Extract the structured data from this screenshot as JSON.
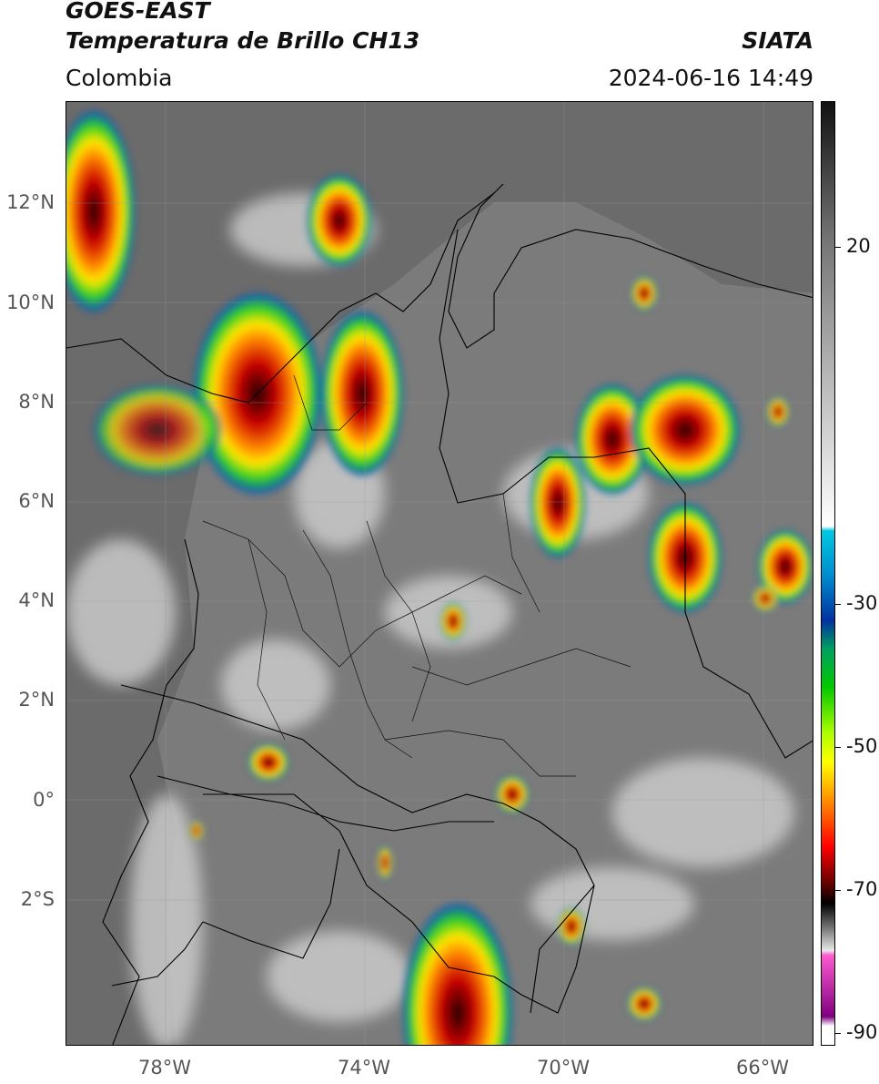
{
  "header": {
    "satellite": "GOES-EAST",
    "product": "Temperatura de Brillo CH13",
    "org": "SIATA",
    "region": "Colombia",
    "datetime": "2024-06-16 14:49"
  },
  "map": {
    "lat_labels": [
      "12°N",
      "10°N",
      "8°N",
      "6°N",
      "4°N",
      "2°N",
      "0°",
      "2°S"
    ],
    "lon_labels": [
      "78°W",
      "74°W",
      "70°W",
      "66°W"
    ],
    "colors": {
      "ocean": "#6e6e6e",
      "land": "#7d7d7d",
      "cold_cloud": "#d8d8d8",
      "border": "#000000"
    }
  },
  "colorbar": {
    "labels": [
      "20",
      "-30",
      "-50",
      "-70",
      "-90"
    ],
    "gradient": [
      "#111111",
      "#ffffff",
      "#00c8e0",
      "#0032a0",
      "#00c800",
      "#ffff00",
      "#ff0000",
      "#000000",
      "#e8e8e8",
      "#ff5ad0",
      "#800080",
      "#ffffff"
    ]
  }
}
